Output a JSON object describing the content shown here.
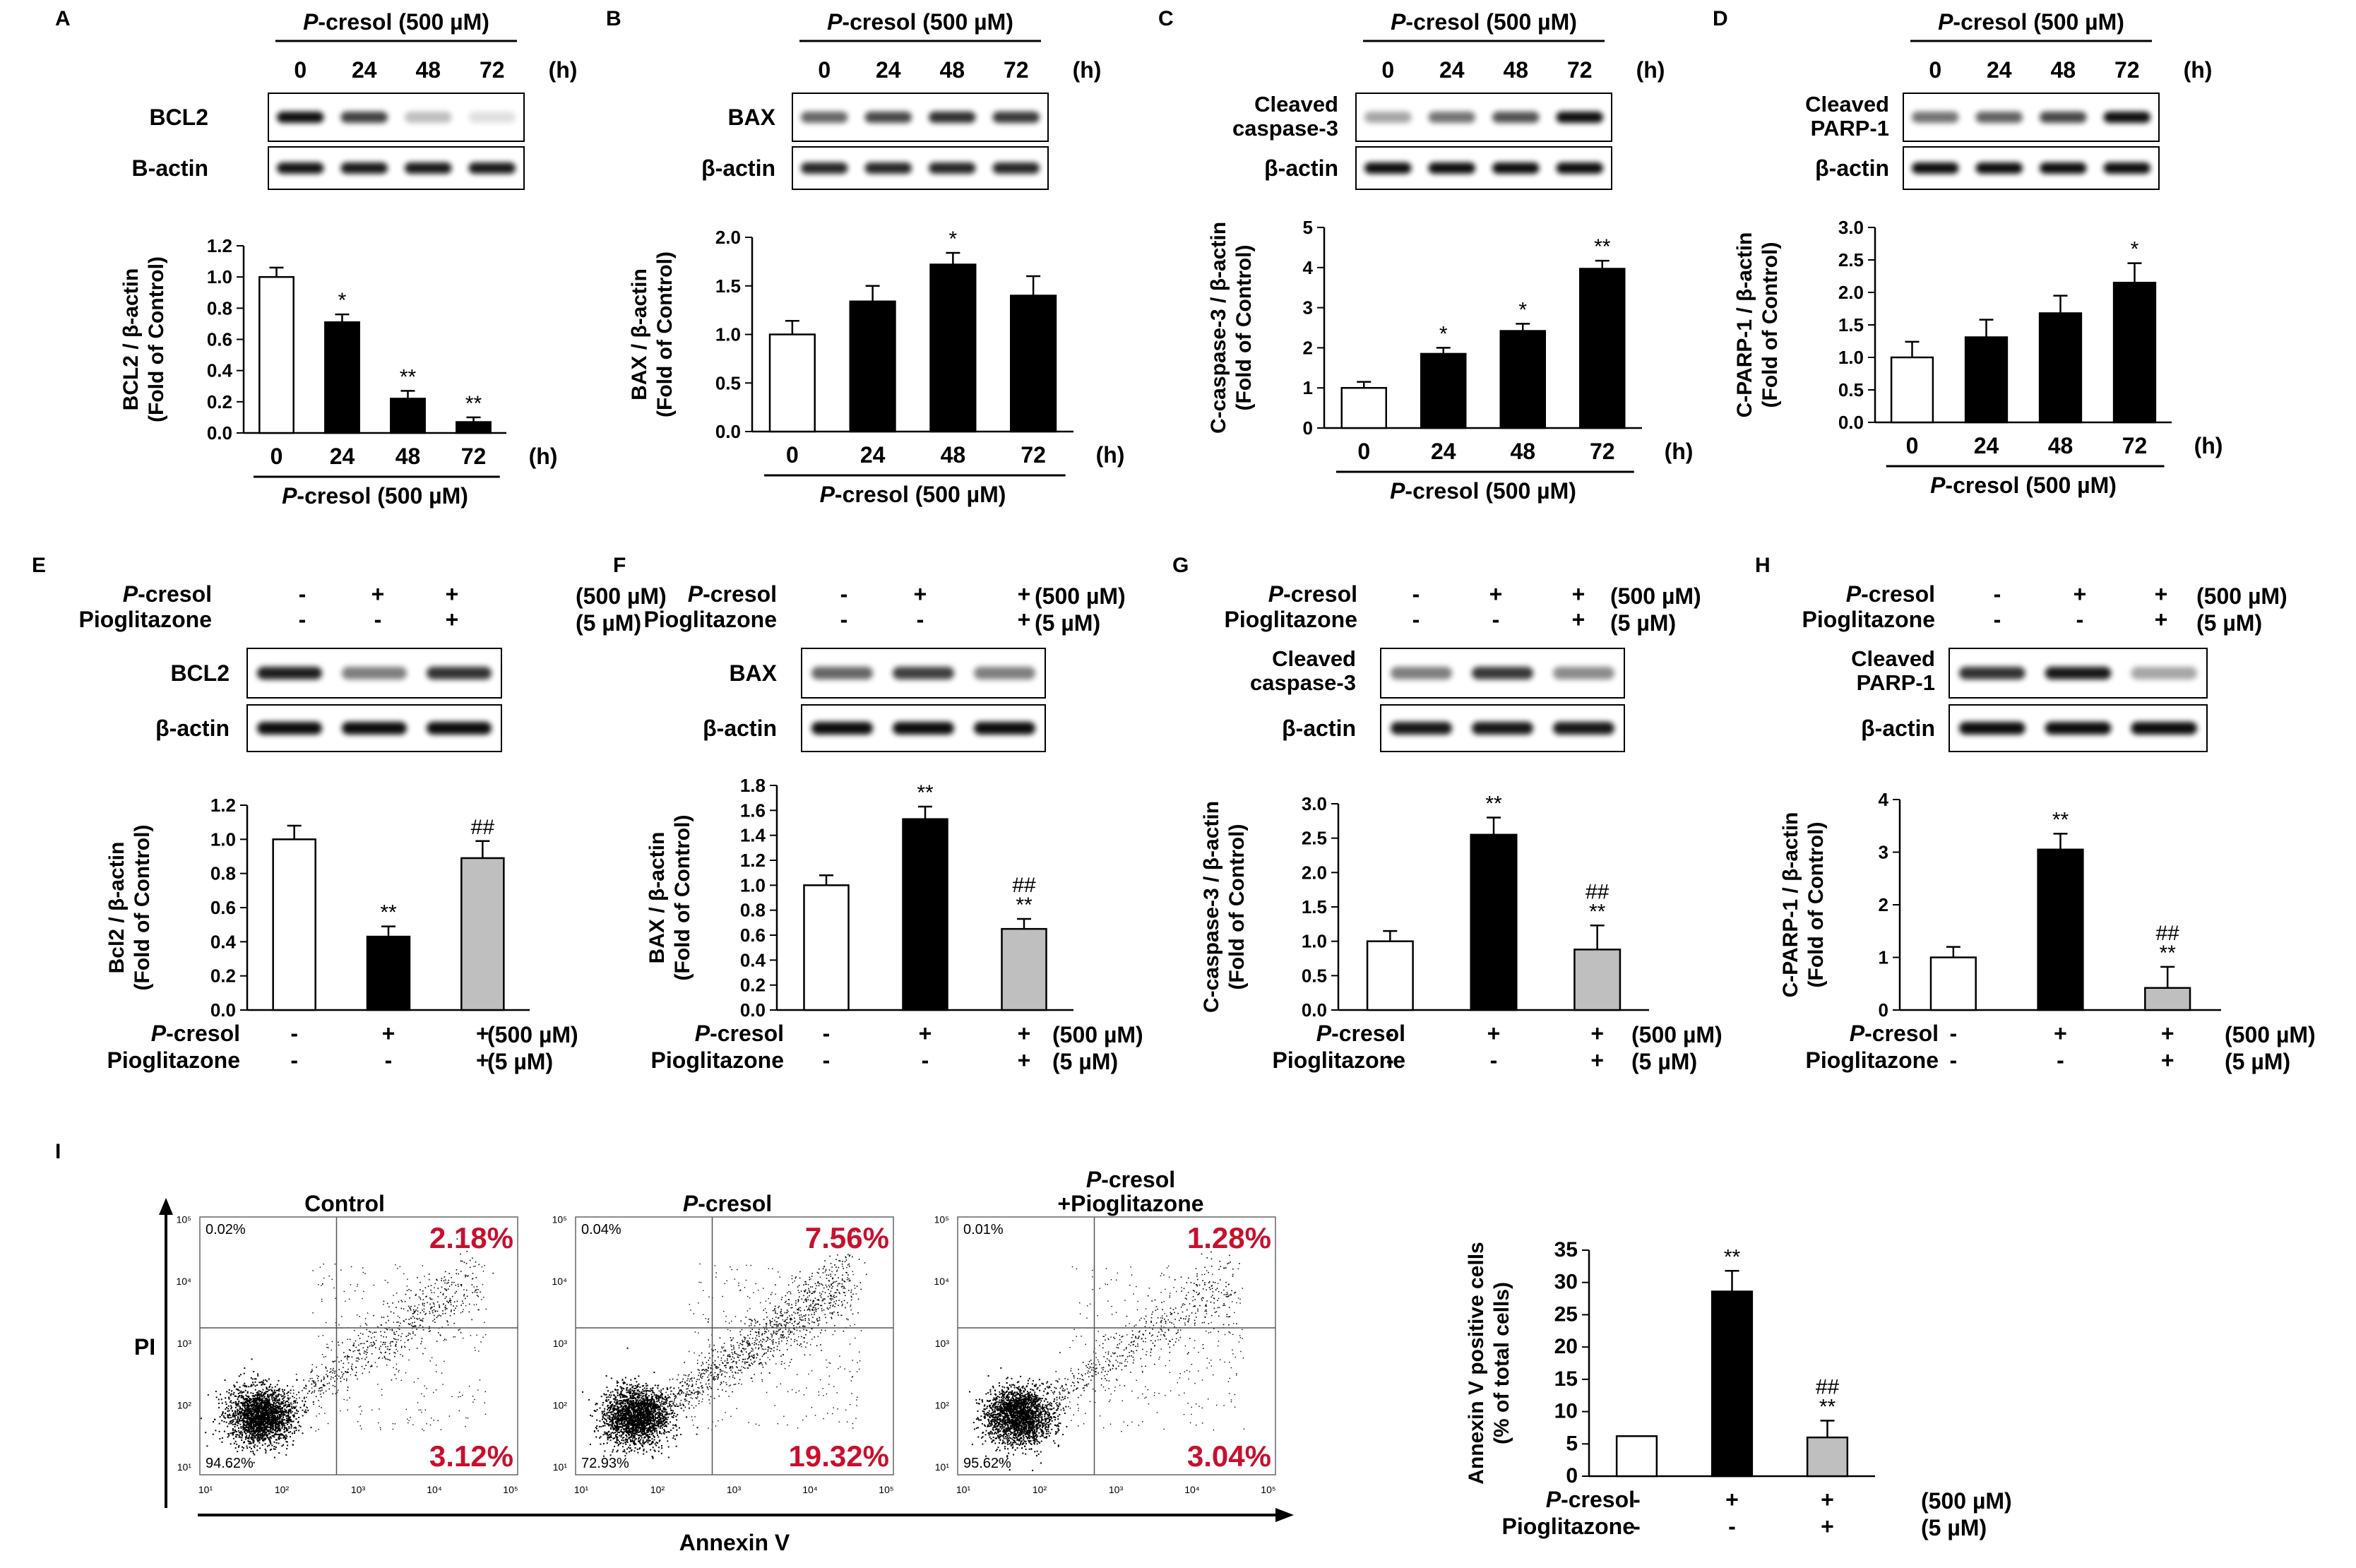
{
  "figure": {
    "panel_letters": [
      "A",
      "B",
      "C",
      "D",
      "E",
      "F",
      "G",
      "H",
      "I"
    ],
    "top_header": "P-cresol (500 µM)",
    "top_header_pre": "P",
    "top_header_post": "-cresol (500 µM)",
    "time_labels": [
      "0",
      "24",
      "48",
      "72"
    ],
    "hour_unit": "(h)",
    "treat_row1_label": "P-cresol",
    "treat_row1_pre": "P",
    "treat_row1_post": "-cresol",
    "treat_row2_label": "Pioglitazone",
    "treat_row1_signs": [
      "-",
      "+",
      "+"
    ],
    "treat_row2_signs": [
      "-",
      "-",
      "+"
    ],
    "treat_row1_dose": "(500 µM)",
    "treat_row2_dose": "(5 µM)",
    "colors": {
      "black": "#000000",
      "white": "#ffffff",
      "gray": "#bfbfbf",
      "red": "#c8102e"
    }
  },
  "blots": {
    "A": [
      "BCL2",
      "B-actin"
    ],
    "B": [
      "BAX",
      "β-actin"
    ],
    "C": [
      "Cleaved|caspase-3",
      "β-actin"
    ],
    "D": [
      "Cleaved|PARP-1",
      "β-actin"
    ],
    "E": [
      "BCL2",
      "β-actin"
    ],
    "F": [
      "BAX",
      "β-actin"
    ],
    "G": [
      "Cleaved|caspase-3",
      "β-actin"
    ],
    "H": [
      "Cleaved|PARP-1",
      "β-actin"
    ]
  },
  "chart_data": [
    {
      "panel": "A",
      "type": "bar",
      "categories": [
        "0",
        "24",
        "48",
        "72"
      ],
      "values": [
        1.0,
        0.71,
        0.22,
        0.07
      ],
      "errors": [
        0.06,
        0.05,
        0.05,
        0.03
      ],
      "significance": [
        "",
        "*",
        "**",
        "**"
      ],
      "fills": [
        "white",
        "black",
        "black",
        "black"
      ],
      "ylabel": "BCL2 / β-actin",
      "ylabel2": "(Fold of Control)",
      "ylim": [
        0,
        1.2
      ],
      "yticks": [
        "0.0",
        "0.2",
        "0.4",
        "0.6",
        "0.8",
        "1.0",
        "1.2"
      ],
      "xlabel": "P-cresol (500 µM)",
      "xunit": "(h)"
    },
    {
      "panel": "B",
      "type": "bar",
      "categories": [
        "0",
        "24",
        "48",
        "72"
      ],
      "values": [
        1.0,
        1.34,
        1.72,
        1.4
      ],
      "errors": [
        0.14,
        0.16,
        0.12,
        0.2
      ],
      "significance": [
        "",
        "",
        "*",
        ""
      ],
      "fills": [
        "white",
        "black",
        "black",
        "black"
      ],
      "ylabel": "BAX / β-actin",
      "ylabel2": "(Fold of Control)",
      "ylim": [
        0,
        2.0
      ],
      "yticks": [
        "0.0",
        "0.5",
        "1.0",
        "1.5",
        "2.0"
      ],
      "xlabel": "P-cresol (500 µM)",
      "xunit": "(h)"
    },
    {
      "panel": "C",
      "type": "bar",
      "categories": [
        "0",
        "24",
        "48",
        "72"
      ],
      "values": [
        1.0,
        1.85,
        2.42,
        3.97
      ],
      "errors": [
        0.15,
        0.15,
        0.18,
        0.2
      ],
      "significance": [
        "",
        "*",
        "*",
        "**"
      ],
      "fills": [
        "white",
        "black",
        "black",
        "black"
      ],
      "ylabel": "C-caspase-3 / β-actin",
      "ylabel2": "(Fold of Control)",
      "ylim": [
        0,
        5
      ],
      "yticks": [
        "0",
        "1",
        "2",
        "3",
        "4",
        "5"
      ],
      "xlabel": "P-cresol (500 µM)",
      "xunit": "(h)"
    },
    {
      "panel": "D",
      "type": "bar",
      "categories": [
        "0",
        "24",
        "48",
        "72"
      ],
      "values": [
        1.0,
        1.31,
        1.68,
        2.15
      ],
      "errors": [
        0.24,
        0.27,
        0.27,
        0.3
      ],
      "significance": [
        "",
        "",
        "",
        "*"
      ],
      "fills": [
        "white",
        "black",
        "black",
        "black"
      ],
      "ylabel": "C-PARP-1 / β-actin",
      "ylabel2": "(Fold of Control)",
      "ylim": [
        0,
        3.0
      ],
      "yticks": [
        "0.0",
        "0.5",
        "1.0",
        "1.5",
        "2.0",
        "2.5",
        "3.0"
      ],
      "xlabel": "P-cresol (500 µM)",
      "xunit": "(h)"
    },
    {
      "panel": "E",
      "type": "bar",
      "categories": [
        "Control",
        "P-cresol",
        "P-cresol+Pioglitazone"
      ],
      "values": [
        1.0,
        0.43,
        0.89
      ],
      "errors": [
        0.08,
        0.06,
        0.1
      ],
      "significance": [
        "",
        "**",
        "##"
      ],
      "fills": [
        "white",
        "black",
        "gray"
      ],
      "ylabel": "Bcl2 / β-actin",
      "ylabel2": "(Fold of Control)",
      "ylim": [
        0,
        1.2
      ],
      "yticks": [
        "0.0",
        "0.2",
        "0.4",
        "0.6",
        "0.8",
        "1.0",
        "1.2"
      ]
    },
    {
      "panel": "F",
      "type": "bar",
      "categories": [
        "Control",
        "P-cresol",
        "P-cresol+Pioglitazone"
      ],
      "values": [
        1.0,
        1.53,
        0.65
      ],
      "errors": [
        0.08,
        0.1,
        0.08
      ],
      "significance": [
        "",
        "**",
        "##|**"
      ],
      "fills": [
        "white",
        "black",
        "gray"
      ],
      "ylabel": "BAX / β-actin",
      "ylabel2": "(Fold of Control)",
      "ylim": [
        0,
        1.8
      ],
      "yticks": [
        "0.0",
        "0.2",
        "0.4",
        "0.6",
        "0.8",
        "1.0",
        "1.2",
        "1.4",
        "1.6",
        "1.8"
      ]
    },
    {
      "panel": "G",
      "type": "bar",
      "categories": [
        "Control",
        "P-cresol",
        "P-cresol+Pioglitazone"
      ],
      "values": [
        1.0,
        2.55,
        0.88
      ],
      "errors": [
        0.15,
        0.25,
        0.35
      ],
      "significance": [
        "",
        "**",
        "##|**"
      ],
      "fills": [
        "white",
        "black",
        "gray"
      ],
      "ylabel": "C-caspase-3 / β-actin",
      "ylabel2": "(Fold of Control)",
      "ylim": [
        0,
        3.0
      ],
      "yticks": [
        "0.0",
        "0.5",
        "1.0",
        "1.5",
        "2.0",
        "2.5",
        "3.0"
      ]
    },
    {
      "panel": "H",
      "type": "bar",
      "categories": [
        "Control",
        "P-cresol",
        "P-cresol+Pioglitazone"
      ],
      "values": [
        1.0,
        3.05,
        0.42
      ],
      "errors": [
        0.2,
        0.3,
        0.4
      ],
      "significance": [
        "",
        "**",
        "##|**"
      ],
      "fills": [
        "white",
        "black",
        "gray"
      ],
      "ylabel": "C-PARP-1 / β-actin",
      "ylabel2": "(Fold of Control)",
      "ylim": [
        0,
        4
      ],
      "yticks": [
        "0",
        "1",
        "2",
        "3",
        "4"
      ]
    },
    {
      "panel": "I",
      "type": "bar",
      "categories": [
        "Control",
        "P-cresol",
        "P-cresol+Pioglitazone"
      ],
      "values": [
        6.2,
        28.6,
        6.0
      ],
      "errors": [
        0,
        3.2,
        2.6
      ],
      "significance": [
        "",
        "**",
        "##|**"
      ],
      "fills": [
        "white",
        "black",
        "gray"
      ],
      "ylabel": "Annexin V positive cells",
      "ylabel2": "(% of total cells)",
      "ylim": [
        0,
        35
      ],
      "yticks": [
        "0",
        "5",
        "10",
        "15",
        "20",
        "25",
        "30",
        "35"
      ]
    },
    {
      "panel": "I-flow",
      "type": "scatter",
      "xlabel": "Annexin V",
      "ylabel": "PI",
      "tick_labels": [
        "10¹",
        "10²",
        "10³",
        "10⁴",
        "10⁵"
      ],
      "plots": [
        {
          "title": "Control",
          "title2": "",
          "q_upper_left": "0.02%",
          "q_upper_right": "2.18%",
          "q_lower_left": "94.62%",
          "q_lower_right": "3.12%",
          "tail": 0.55
        },
        {
          "title": "P-cresol",
          "title2": "",
          "q_upper_left": "0.04%",
          "q_upper_right": "7.56%",
          "q_lower_left": "72.93%",
          "q_lower_right": "19.32%",
          "tail": 1.0
        },
        {
          "title": "P-cresol",
          "title2": "+Pioglitazone",
          "q_upper_left": "0.01%",
          "q_upper_right": "1.28%",
          "q_lower_left": "95.62%",
          "q_lower_right": "3.04%",
          "tail": 0.45
        }
      ]
    }
  ]
}
